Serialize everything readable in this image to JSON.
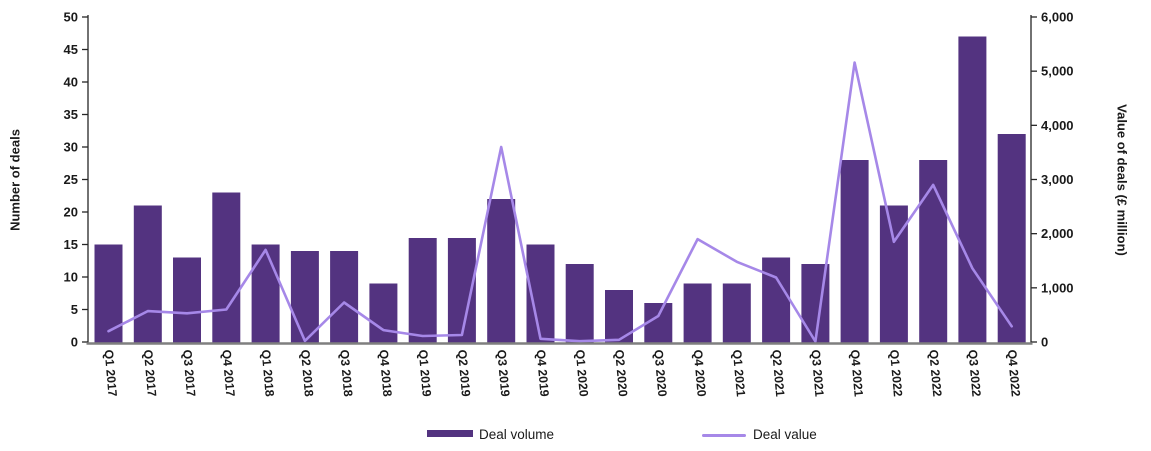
{
  "chart_data": {
    "type": "bar+line combo",
    "categories": [
      "Q1 2017",
      "Q2 2017",
      "Q3 2017",
      "Q4 2017",
      "Q1 2018",
      "Q2 2018",
      "Q3 2018",
      "Q4 2018",
      "Q1 2019",
      "Q2 2019",
      "Q3 2019",
      "Q4 2019",
      "Q1 2020",
      "Q2 2020",
      "Q3 2020",
      "Q4 2020",
      "Q1 2021",
      "Q2 2021",
      "Q3 2021",
      "Q4 2021",
      "Q1 2022",
      "Q2 2022",
      "Q3 2022",
      "Q4 2022"
    ],
    "series": [
      {
        "name": "Deal volume",
        "type": "bar",
        "axis": "left",
        "color": "#533380",
        "values": [
          15,
          21,
          13,
          23,
          15,
          14,
          14,
          9,
          16,
          16,
          22,
          15,
          12,
          8,
          6,
          9,
          9,
          13,
          12,
          28,
          21,
          28,
          47,
          32
        ]
      },
      {
        "name": "Deal value",
        "type": "line",
        "axis": "right",
        "color": "#a688e8",
        "values": [
          200,
          570,
          530,
          600,
          1700,
          20,
          730,
          220,
          110,
          130,
          3600,
          60,
          15,
          40,
          480,
          1900,
          1480,
          1190,
          10,
          5160,
          1850,
          2900,
          1360,
          290
        ]
      }
    ],
    "left_axis": {
      "label": "Number of deals",
      "min": 0,
      "max": 50,
      "step": 5
    },
    "right_axis": {
      "label": "Value of deals (£ million)",
      "min": 0,
      "max": 6000,
      "step": 1000,
      "tick_format": "comma"
    },
    "grid": "off",
    "legend_position": "bottom",
    "title": ""
  }
}
